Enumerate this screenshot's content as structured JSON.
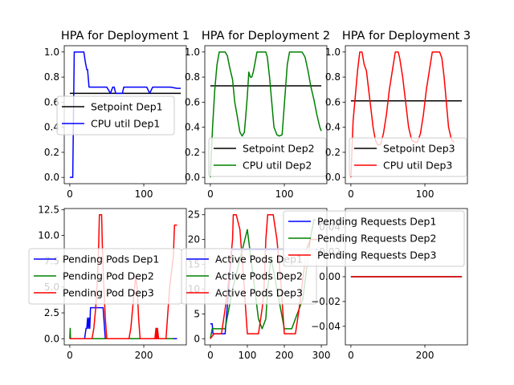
{
  "chart_data": [
    {
      "type": "line",
      "title": "HPA for Deployment 1",
      "xlim": [
        -7.5,
        157.5
      ],
      "ylim": [
        -0.05,
        1.05
      ],
      "xticks": [
        0,
        100
      ],
      "yticks": [
        0.0,
        0.2,
        0.4,
        0.6,
        0.8,
        1.0
      ],
      "ytick_labels": [
        "0.0",
        "0.2",
        "0.4",
        "0.6",
        "0.8",
        "1.0"
      ],
      "xtick_labels": [
        "0",
        "100"
      ],
      "legend": "center-right",
      "series": [
        {
          "name": "Setpoint Dep1",
          "color": "#000000",
          "x": [
            0,
            150
          ],
          "y": [
            0.67,
            0.67
          ]
        },
        {
          "name": "CPU util Dep1",
          "color": "#0000ff",
          "x": [
            0,
            4,
            6,
            8,
            19,
            21,
            23,
            24,
            26,
            28,
            29,
            50,
            55,
            58,
            60,
            62,
            66,
            71,
            73,
            80,
            104,
            108,
            112,
            113,
            116,
            120,
            136,
            145,
            150
          ],
          "y": [
            0.0,
            0.0,
            1.0,
            1.0,
            1.0,
            0.92,
            0.86,
            0.86,
            0.72,
            0.72,
            0.72,
            0.72,
            0.67,
            0.72,
            0.72,
            0.67,
            0.67,
            0.67,
            0.72,
            0.72,
            0.72,
            0.67,
            0.72,
            0.72,
            0.72,
            0.72,
            0.72,
            0.71,
            0.71
          ]
        }
      ]
    },
    {
      "type": "line",
      "title": "HPA for Deployment 2",
      "xlim": [
        -7.5,
        157.5
      ],
      "ylim": [
        -0.05,
        1.05
      ],
      "xticks": [
        0,
        100
      ],
      "yticks": [
        0.0,
        0.2,
        0.4,
        0.6,
        0.8,
        1.0
      ],
      "ytick_labels": [
        "0.0",
        "0.2",
        "0.4",
        "0.6",
        "0.8",
        "1.0"
      ],
      "xtick_labels": [
        "0",
        "100"
      ],
      "legend": "lower-right",
      "series": [
        {
          "name": "Setpoint Dep2",
          "color": "#000000",
          "x": [
            0,
            150
          ],
          "y": [
            0.73,
            0.73
          ]
        },
        {
          "name": "CPU util Dep2",
          "color": "#008000",
          "x": [
            0,
            3,
            6,
            9,
            12,
            20,
            23,
            26,
            30,
            33,
            36,
            40,
            43,
            46,
            48,
            50,
            52,
            54,
            56,
            58,
            60,
            63,
            66,
            70,
            75,
            77,
            80,
            83,
            86,
            90,
            93,
            97,
            100,
            104,
            107,
            110,
            113,
            116,
            120,
            124,
            128,
            132,
            136,
            140,
            144,
            148,
            150
          ],
          "y": [
            0.0,
            0.4,
            0.7,
            0.9,
            1.0,
            1.0,
            0.97,
            0.88,
            0.78,
            0.6,
            0.5,
            0.36,
            0.33,
            0.36,
            0.5,
            0.65,
            0.84,
            0.8,
            0.8,
            0.84,
            0.9,
            1.0,
            1.0,
            1.0,
            1.0,
            0.96,
            0.8,
            0.6,
            0.4,
            0.34,
            0.33,
            0.34,
            0.58,
            0.9,
            1.0,
            1.0,
            1.0,
            1.0,
            1.0,
            1.0,
            0.96,
            0.85,
            0.72,
            0.62,
            0.5,
            0.4,
            0.37
          ]
        }
      ]
    },
    {
      "type": "line",
      "title": "HPA for Deployment 3",
      "xlim": [
        -7.5,
        157.5
      ],
      "ylim": [
        -0.05,
        1.05
      ],
      "xticks": [
        0,
        100
      ],
      "yticks": [
        0.0,
        0.2,
        0.4,
        0.6,
        0.8,
        1.0
      ],
      "ytick_labels": [
        "0.0",
        "0.2",
        "0.4",
        "0.6",
        "0.8",
        "1.0"
      ],
      "xtick_labels": [
        "0",
        "100"
      ],
      "legend": "lower-right",
      "series": [
        {
          "name": "Setpoint Dep3",
          "color": "#000000",
          "x": [
            0,
            150
          ],
          "y": [
            0.61,
            0.61
          ]
        },
        {
          "name": "CPU util Dep3",
          "color": "#ff0000",
          "x": [
            0,
            3,
            6,
            9,
            12,
            15,
            18,
            21,
            24,
            27,
            30,
            33,
            36,
            40,
            44,
            48,
            52,
            56,
            60,
            62,
            64,
            66,
            70,
            74,
            78,
            82,
            86,
            90,
            94,
            98,
            102,
            106,
            110,
            113,
            116,
            120,
            123,
            126,
            129,
            132,
            136,
            140
          ],
          "y": [
            0.0,
            0.45,
            0.65,
            0.85,
            1.0,
            1.0,
            0.9,
            0.85,
            0.7,
            0.55,
            0.4,
            0.3,
            0.26,
            0.26,
            0.35,
            0.5,
            0.7,
            0.85,
            1.0,
            1.0,
            1.0,
            0.95,
            0.8,
            0.6,
            0.4,
            0.3,
            0.28,
            0.28,
            0.35,
            0.5,
            0.7,
            0.85,
            1.0,
            1.0,
            1.0,
            1.0,
            0.95,
            0.8,
            0.6,
            0.4,
            0.3,
            0.28
          ]
        }
      ]
    },
    {
      "type": "line",
      "title": "",
      "xlim": [
        -15,
        315
      ],
      "ylim": [
        -0.6,
        12.6
      ],
      "xticks": [
        0,
        200
      ],
      "yticks": [
        0.0,
        2.5,
        5.0,
        7.5,
        10.0,
        12.5
      ],
      "ytick_labels": [
        "0.0",
        "2.5",
        "5.0",
        "7.5",
        "10.0",
        "12.5"
      ],
      "xtick_labels": [
        "0",
        "200"
      ],
      "legend": "center",
      "series": [
        {
          "name": "Pending Pods Dep1",
          "color": "#0000ff",
          "x": [
            0,
            40,
            42,
            44,
            46,
            48,
            50,
            52,
            54,
            56,
            60,
            75,
            80,
            85,
            90,
            96,
            100,
            110,
            150,
            290
          ],
          "y": [
            0.0,
            0.0,
            0.5,
            1.0,
            1.0,
            2.0,
            1.0,
            2.0,
            1.0,
            3.0,
            3.0,
            3.0,
            3.0,
            3.0,
            3.0,
            0.0,
            0.0,
            0.0,
            0.0,
            0.0
          ]
        },
        {
          "name": "Pending Pod Dep2",
          "color": "#008000",
          "x": [
            0,
            1,
            2,
            3,
            280
          ],
          "y": [
            0.0,
            1.0,
            0.0,
            0.0,
            0.0
          ]
        },
        {
          "name": "Pending Pod Dep3",
          "color": "#ff0000",
          "x": [
            0,
            60,
            65,
            70,
            75,
            78,
            80,
            86,
            88,
            92,
            96,
            100,
            160,
            165,
            170,
            178,
            182,
            186,
            190,
            230,
            233,
            234,
            235,
            236,
            237,
            240,
            260,
            270,
            280,
            283,
            286,
            290
          ],
          "y": [
            0.0,
            0.0,
            1.0,
            3.0,
            6.0,
            9.0,
            12.0,
            12.0,
            9.0,
            5.0,
            2.0,
            0.0,
            0.0,
            1.0,
            3.0,
            6.0,
            5.0,
            2.0,
            0.0,
            0.0,
            1.0,
            0.0,
            1.0,
            0.0,
            1.0,
            0.0,
            0.0,
            5.0,
            8.0,
            11.0,
            11.0,
            11.0
          ]
        }
      ]
    },
    {
      "type": "line",
      "title": "",
      "xlim": [
        -15,
        315
      ],
      "ylim": [
        -1.25,
        26.25
      ],
      "xticks": [
        0,
        100,
        200,
        300
      ],
      "yticks": [
        0,
        5,
        10,
        15,
        20,
        25
      ],
      "ytick_labels": [
        "0",
        "5",
        "10",
        "15",
        "20",
        "25"
      ],
      "xtick_labels": [
        "0",
        "100",
        "200",
        "300"
      ],
      "legend": "center",
      "series": [
        {
          "name": "Active Pods Dep1",
          "color": "#0000ff",
          "x": [
            0,
            5,
            7,
            10,
            20,
            40,
            58,
            60,
            62,
            100,
            150,
            200,
            290
          ],
          "y": [
            3,
            3,
            1,
            1,
            1,
            1,
            18,
            18,
            18,
            18,
            18,
            18,
            18
          ]
        },
        {
          "name": "Active Pods Dep2",
          "color": "#008000",
          "x": [
            0,
            5,
            20,
            40,
            60,
            80,
            100,
            110,
            120,
            130,
            140,
            150,
            155,
            160,
            165,
            170,
            180,
            190,
            200,
            220,
            230,
            250,
            260,
            270,
            280,
            285
          ],
          "y": [
            0,
            2,
            2,
            2,
            10,
            16,
            22,
            16,
            10,
            4,
            2,
            4,
            10,
            14,
            16,
            14,
            10,
            6,
            2,
            2,
            4,
            8,
            14,
            20,
            24,
            24
          ]
        },
        {
          "name": "Active Pods Dep3",
          "color": "#ff0000",
          "x": [
            0,
            10,
            20,
            25,
            30,
            40,
            50,
            60,
            62,
            64,
            66,
            70,
            80,
            90,
            100,
            110,
            120,
            130,
            140,
            145,
            150,
            155,
            160,
            170,
            180,
            190,
            200,
            210,
            220,
            230,
            240,
            250,
            260,
            270,
            280,
            290
          ],
          "y": [
            0,
            1,
            1,
            1,
            1,
            6,
            12,
            20,
            25,
            25,
            25,
            25,
            22,
            12,
            1,
            1,
            1,
            1,
            6,
            10,
            20,
            25,
            25,
            25,
            20,
            12,
            1,
            1,
            1,
            1,
            6,
            12,
            18,
            20,
            20,
            20
          ]
        }
      ]
    },
    {
      "type": "line",
      "title": "",
      "xlim": [
        -15,
        315
      ],
      "ylim": [
        -0.055,
        0.055
      ],
      "xticks": [
        0,
        200
      ],
      "yticks": [
        -0.04,
        -0.02,
        0.0,
        0.02,
        0.04
      ],
      "ytick_labels": [
        "−0.04",
        "−0.02",
        "0.00",
        "0.02",
        "0.04"
      ],
      "xtick_labels": [
        "0",
        "200"
      ],
      "legend": "upper-right",
      "series": [
        {
          "name": "Pending Requests Dep1",
          "color": "#0000ff",
          "x": [
            0,
            300
          ],
          "y": [
            0,
            0
          ]
        },
        {
          "name": "Pending Requests Dep2",
          "color": "#008000",
          "x": [
            0,
            300
          ],
          "y": [
            0,
            0
          ]
        },
        {
          "name": "Pending Requests Dep3",
          "color": "#ff0000",
          "x": [
            0,
            300
          ],
          "y": [
            0,
            0
          ]
        }
      ]
    }
  ]
}
